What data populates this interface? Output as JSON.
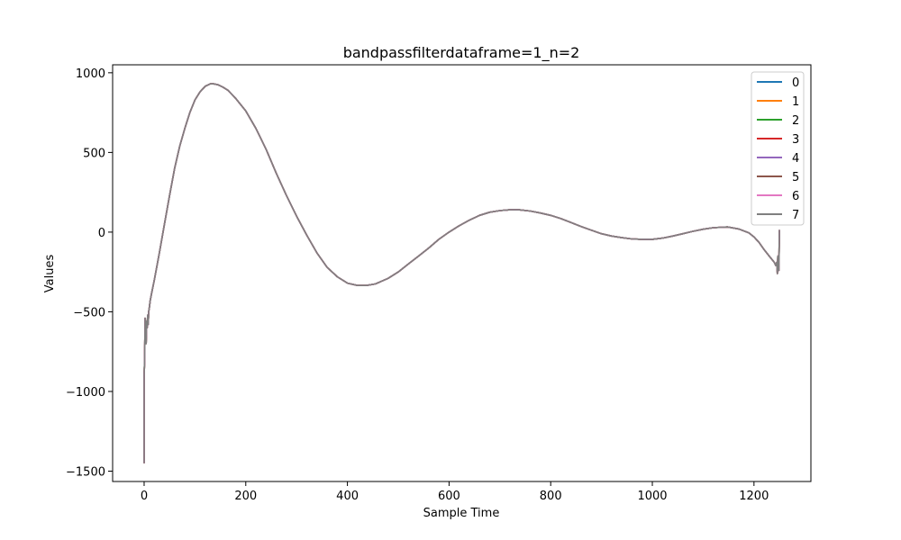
{
  "chart_data": {
    "type": "line",
    "title": "bandpassfilterdataframe=1_n=2",
    "xlabel": "Sample Time",
    "ylabel": "Values",
    "xlim": [
      -62,
      1312
    ],
    "ylim": [
      -1565,
      1050
    ],
    "xticks": [
      0,
      200,
      400,
      600,
      800,
      1000,
      1200
    ],
    "yticks": [
      -1500,
      -1000,
      -500,
      0,
      500,
      1000
    ],
    "legend": "top-right",
    "colors": [
      "#1f77b4",
      "#ff7f0e",
      "#2ca02c",
      "#d62728",
      "#9467bd",
      "#8c564b",
      "#e377c2",
      "#7f7f7f"
    ],
    "series": [
      {
        "name": "0"
      },
      {
        "name": "1"
      },
      {
        "name": "2"
      },
      {
        "name": "3"
      },
      {
        "name": "4"
      },
      {
        "name": "5"
      },
      {
        "name": "6"
      },
      {
        "name": "7"
      }
    ],
    "x": [
      0,
      0,
      1,
      2,
      3,
      4,
      5,
      6,
      7,
      8,
      9,
      10,
      12,
      15,
      20,
      30,
      40,
      50,
      60,
      70,
      80,
      90,
      100,
      110,
      120,
      130,
      137,
      145,
      155,
      165,
      180,
      200,
      220,
      240,
      260,
      280,
      300,
      320,
      340,
      360,
      380,
      400,
      420,
      437,
      455,
      480,
      500,
      520,
      540,
      560,
      580,
      600,
      620,
      640,
      660,
      680,
      700,
      720,
      737,
      760,
      780,
      800,
      820,
      840,
      860,
      880,
      900,
      920,
      940,
      960,
      980,
      1000,
      1020,
      1040,
      1060,
      1080,
      1100,
      1120,
      1148,
      1170,
      1190,
      1200,
      1210,
      1220,
      1230,
      1240,
      1243,
      1245,
      1246,
      1247,
      1248,
      1249,
      1250,
      1250
    ],
    "values": [
      -1450,
      -900,
      -800,
      -540,
      -600,
      -700,
      -560,
      -600,
      -520,
      -580,
      -500,
      -480,
      -430,
      -380,
      -300,
      -130,
      50,
      230,
      400,
      540,
      650,
      750,
      830,
      880,
      915,
      930,
      930,
      925,
      910,
      890,
      840,
      760,
      650,
      520,
      370,
      230,
      100,
      -20,
      -130,
      -220,
      -280,
      -320,
      -335,
      -335,
      -325,
      -290,
      -250,
      -200,
      -150,
      -100,
      -45,
      0,
      40,
      75,
      105,
      125,
      135,
      140,
      140,
      132,
      120,
      105,
      85,
      60,
      35,
      12,
      -10,
      -25,
      -35,
      -43,
      -45,
      -45,
      -38,
      -25,
      -10,
      5,
      18,
      28,
      32,
      20,
      -5,
      -30,
      -65,
      -110,
      -150,
      -190,
      -210,
      -190,
      -260,
      -150,
      -230,
      -240,
      10,
      -50
    ]
  }
}
